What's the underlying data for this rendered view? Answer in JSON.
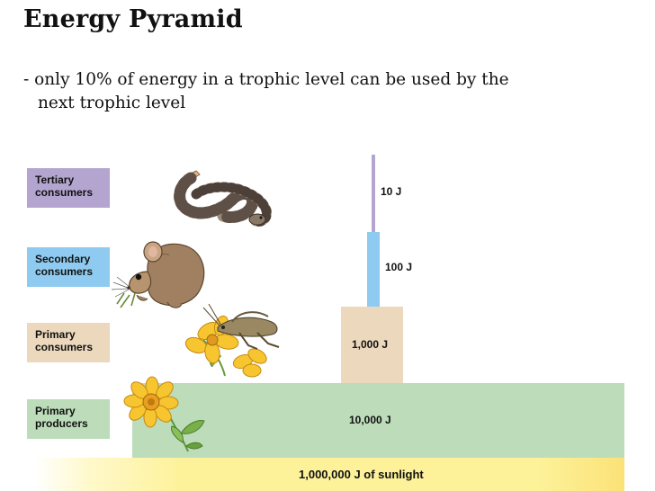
{
  "title": "Energy Pyramid",
  "bullet": {
    "line1": "- only 10% of energy in a trophic level can be used by the",
    "line2": "next trophic level"
  },
  "levels": [
    {
      "label_line1": "Tertiary",
      "label_line2": "consumers",
      "energy": "10 J",
      "color": "#b3a5cf"
    },
    {
      "label_line1": "Secondary",
      "label_line2": "consumers",
      "energy": "100 J",
      "color": "#8fcbf0"
    },
    {
      "label_line1": "Primary",
      "label_line2": "consumers",
      "energy": "1,000 J",
      "color": "#ecd8bd"
    },
    {
      "label_line1": "Primary",
      "label_line2": "producers",
      "energy": "10,000 J",
      "color": "#bcdcba"
    }
  ],
  "sunlight": {
    "label": "1,000,000 J of sunlight",
    "color": "#fdf29a"
  },
  "illustrations": [
    "snake-icon",
    "mouse-icon",
    "grasshopper-icon",
    "flower-icon"
  ]
}
